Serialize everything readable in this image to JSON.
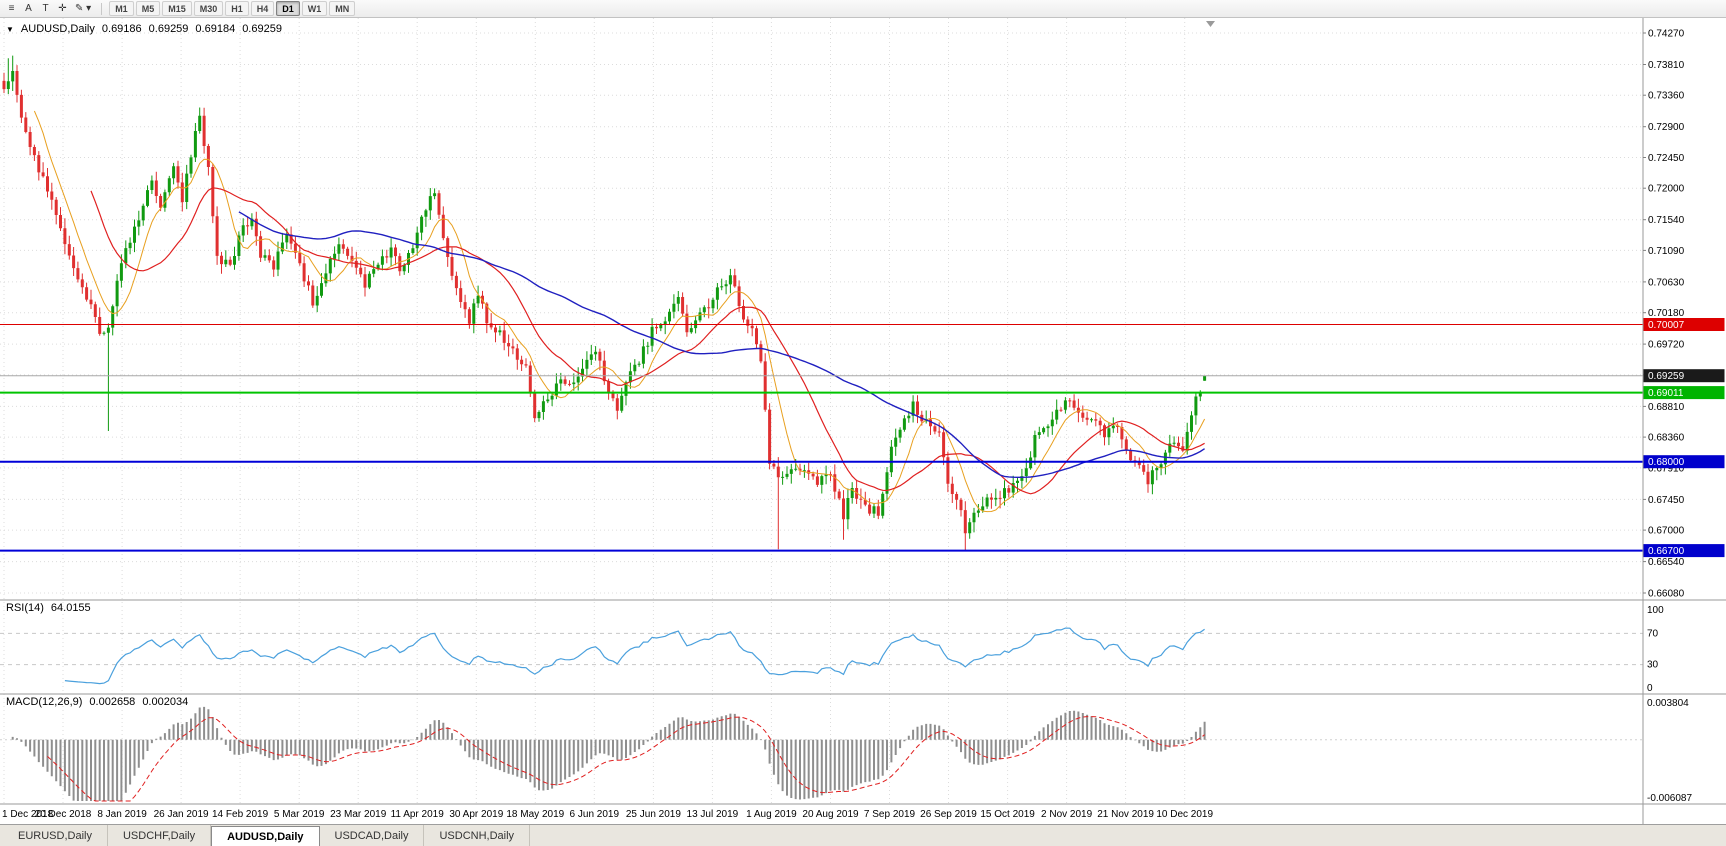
{
  "toolbar": {
    "icons": [
      {
        "name": "charts-menu-icon",
        "glyph": "≡"
      },
      {
        "name": "cursor-tool-icon",
        "glyph": "A"
      },
      {
        "name": "text-tool-icon",
        "glyph": "T"
      },
      {
        "name": "crosshair-icon",
        "glyph": "✛"
      },
      {
        "name": "draw-tools-icon",
        "glyph": "✎ ▾"
      }
    ],
    "timeframes": [
      {
        "label": "M1",
        "active": false
      },
      {
        "label": "M5",
        "active": false
      },
      {
        "label": "M15",
        "active": false
      },
      {
        "label": "M30",
        "active": false
      },
      {
        "label": "H1",
        "active": false
      },
      {
        "label": "H4",
        "active": false
      },
      {
        "label": "D1",
        "active": true
      },
      {
        "label": "W1",
        "active": false
      },
      {
        "label": "MN",
        "active": false
      }
    ]
  },
  "chart": {
    "header": {
      "caret": "▼",
      "symbol": "AUDUSD,Daily",
      "open": "0.69186",
      "high": "0.69259",
      "low": "0.69184",
      "close": "0.69259"
    }
  },
  "price_axis": {
    "ticks": [
      "0.74270",
      "0.73810",
      "0.73360",
      "0.72900",
      "0.72450",
      "0.72000",
      "0.71540",
      "0.71090",
      "0.70630",
      "0.70180",
      "0.69720",
      "0.69270",
      "0.68810",
      "0.68360",
      "0.67910",
      "0.67450",
      "0.67000",
      "0.66540",
      "0.66080"
    ],
    "boxes": [
      {
        "value": "0.70007",
        "bg": "#dd0000",
        "fg": "#ffffff",
        "name": "resistance-price-box"
      },
      {
        "value": "0.69259",
        "bg": "#1a1a1a",
        "fg": "#ffffff",
        "name": "current-price-box"
      },
      {
        "value": "0.69011",
        "bg": "#00b400",
        "fg": "#ffffff",
        "name": "support-green-price-box"
      },
      {
        "value": "0.68000",
        "bg": "#0000cc",
        "fg": "#ffffff",
        "name": "support-blue-price-box"
      },
      {
        "value": "0.66700",
        "bg": "#0000cc",
        "fg": "#ffffff",
        "name": "support-blue2-price-box"
      }
    ]
  },
  "date_axis": {
    "labels": [
      "1 Dec 2018",
      "20 Dec 2018",
      "8 Jan 2019",
      "26 Jan 2019",
      "14 Feb 2019",
      "5 Mar 2019",
      "23 Mar 2019",
      "11 Apr 2019",
      "30 Apr 2019",
      "18 May 2019",
      "6 Jun 2019",
      "25 Jun 2019",
      "13 Jul 2019",
      "1 Aug 2019",
      "20 Aug 2019",
      "7 Sep 2019",
      "26 Sep 2019",
      "15 Oct 2019",
      "2 Nov 2019",
      "21 Nov 2019",
      "10 Dec 2019"
    ]
  },
  "rsi": {
    "label": "RSI(14)",
    "value": "64.0155",
    "scale_labels": [
      "100",
      "70",
      "30",
      "0"
    ],
    "level_lines": [
      70,
      30
    ],
    "range": [
      0,
      100
    ],
    "color": "#4aa0dd"
  },
  "macd": {
    "label": "MACD(12,26,9)",
    "value1": "0.002658",
    "value2": "0.002034",
    "scale_labels": [
      "0.003804",
      "-0.006087"
    ],
    "range": [
      -0.006087,
      0.003804
    ],
    "histogram_color": "#8e8e8e",
    "signal_color": "#e02020"
  },
  "tabs": [
    {
      "label": "EURUSD,Daily",
      "active": false
    },
    {
      "label": "USDCHF,Daily",
      "active": false
    },
    {
      "label": "AUDUSD,Daily",
      "active": true
    },
    {
      "label": "USDCAD,Daily",
      "active": false
    },
    {
      "label": "USDCNH,Daily",
      "active": false
    }
  ],
  "chart_data": {
    "type": "candlestick",
    "symbol": "AUDUSD",
    "timeframe": "Daily",
    "count": 277,
    "price_range_visible": [
      0.6608,
      0.7427
    ],
    "last_candle": {
      "open": 0.69186,
      "high": 0.69259,
      "low": 0.69184,
      "close": 0.69259
    },
    "current_price": 0.69259,
    "colors": {
      "bull": "#119a11",
      "bear": "#e03030",
      "grid": "#dcdcdc",
      "current_line": "#a8a8a8"
    },
    "horizontal_lines": [
      {
        "price": 0.70007,
        "color": "#dd0000",
        "width": 1
      },
      {
        "price": 0.69011,
        "color": "#00c400",
        "width": 2
      },
      {
        "price": 0.68,
        "color": "#0000d8",
        "width": 2
      },
      {
        "price": 0.667,
        "color": "#0000d8",
        "width": 2
      }
    ],
    "moving_averages": [
      {
        "period": 8,
        "color": "#e8a020",
        "width": 1
      },
      {
        "period": 21,
        "color": "#e02020",
        "width": 1.2
      },
      {
        "period": 55,
        "color": "#2020c0",
        "width": 1.4
      }
    ],
    "anchors": [
      [
        0,
        0.7345
      ],
      [
        2,
        0.7378
      ],
      [
        4,
        0.731
      ],
      [
        7,
        0.7245
      ],
      [
        10,
        0.7198
      ],
      [
        13,
        0.7138
      ],
      [
        16,
        0.7085
      ],
      [
        19,
        0.704
      ],
      [
        22,
        0.6992
      ],
      [
        24,
        0.7
      ],
      [
        26,
        0.7062
      ],
      [
        28,
        0.7105
      ],
      [
        31,
        0.7158
      ],
      [
        34,
        0.721
      ],
      [
        36,
        0.7178
      ],
      [
        39,
        0.7228
      ],
      [
        41,
        0.7185
      ],
      [
        43,
        0.7252
      ],
      [
        45,
        0.7305
      ],
      [
        47,
        0.7232
      ],
      [
        49,
        0.71
      ],
      [
        52,
        0.7082
      ],
      [
        54,
        0.7132
      ],
      [
        57,
        0.7152
      ],
      [
        59,
        0.71
      ],
      [
        62,
        0.7088
      ],
      [
        65,
        0.7128
      ],
      [
        68,
        0.7088
      ],
      [
        71,
        0.7035
      ],
      [
        74,
        0.7078
      ],
      [
        77,
        0.7118
      ],
      [
        81,
        0.7082
      ],
      [
        83,
        0.7058
      ],
      [
        86,
        0.7092
      ],
      [
        89,
        0.7112
      ],
      [
        91,
        0.7078
      ],
      [
        95,
        0.7132
      ],
      [
        97,
        0.7172
      ],
      [
        99,
        0.7192
      ],
      [
        102,
        0.7098
      ],
      [
        105,
        0.7028
      ],
      [
        107,
        0.7008
      ],
      [
        109,
        0.7048
      ],
      [
        111,
        0.7002
      ],
      [
        114,
        0.6988
      ],
      [
        117,
        0.6962
      ],
      [
        120,
        0.6938
      ],
      [
        122,
        0.6868
      ],
      [
        125,
        0.6888
      ],
      [
        128,
        0.6922
      ],
      [
        131,
        0.6918
      ],
      [
        134,
        0.6948
      ],
      [
        136,
        0.6968
      ],
      [
        138,
        0.692
      ],
      [
        141,
        0.6882
      ],
      [
        144,
        0.6925
      ],
      [
        147,
        0.6962
      ],
      [
        149,
        0.699
      ],
      [
        152,
        0.7012
      ],
      [
        155,
        0.7035
      ],
      [
        157,
        0.6988
      ],
      [
        160,
        0.7018
      ],
      [
        163,
        0.7038
      ],
      [
        165,
        0.7058
      ],
      [
        167,
        0.7072
      ],
      [
        170,
        0.7012
      ],
      [
        172,
        0.6998
      ],
      [
        174,
        0.694
      ],
      [
        176,
        0.6802
      ],
      [
        178,
        0.6772
      ],
      [
        181,
        0.6788
      ],
      [
        184,
        0.6782
      ],
      [
        187,
        0.6768
      ],
      [
        190,
        0.6782
      ],
      [
        193,
        0.6722
      ],
      [
        195,
        0.6762
      ],
      [
        198,
        0.6732
      ],
      [
        201,
        0.6728
      ],
      [
        204,
        0.682
      ],
      [
        206,
        0.6852
      ],
      [
        209,
        0.6882
      ],
      [
        212,
        0.6858
      ],
      [
        215,
        0.6838
      ],
      [
        217,
        0.6762
      ],
      [
        219,
        0.6742
      ],
      [
        221,
        0.6702
      ],
      [
        224,
        0.6728
      ],
      [
        227,
        0.6748
      ],
      [
        231,
        0.6758
      ],
      [
        234,
        0.6772
      ],
      [
        237,
        0.6832
      ],
      [
        240,
        0.6858
      ],
      [
        243,
        0.6878
      ],
      [
        245,
        0.6892
      ],
      [
        247,
        0.6872
      ],
      [
        250,
        0.6862
      ],
      [
        253,
        0.6842
      ],
      [
        256,
        0.6856
      ],
      [
        258,
        0.6812
      ],
      [
        261,
        0.6788
      ],
      [
        263,
        0.6772
      ],
      [
        266,
        0.6802
      ],
      [
        269,
        0.6832
      ],
      [
        271,
        0.6822
      ],
      [
        273,
        0.6872
      ],
      [
        275,
        0.6908
      ],
      [
        276,
        0.69259
      ]
    ],
    "overrides": {
      "1": {
        "high": 0.739
      },
      "2": {
        "high": 0.7394
      },
      "24": {
        "low": 0.6845
      },
      "45": {
        "high": 0.7318
      },
      "122": {
        "low": 0.6858
      },
      "167": {
        "high": 0.7082
      },
      "178": {
        "low": 0.6672
      },
      "193": {
        "low": 0.6686
      },
      "221": {
        "low": 0.667
      },
      "276": {
        "open": 0.69186,
        "high": 0.69259,
        "low": 0.69184,
        "close": 0.69259
      }
    },
    "indicators": [
      {
        "name": "RSI",
        "period": 14,
        "displayed_value": 64.0155
      },
      {
        "name": "MACD",
        "fast": 12,
        "slow": 26,
        "signal": 9,
        "displayed_values": [
          0.002658,
          0.002034
        ]
      }
    ]
  }
}
